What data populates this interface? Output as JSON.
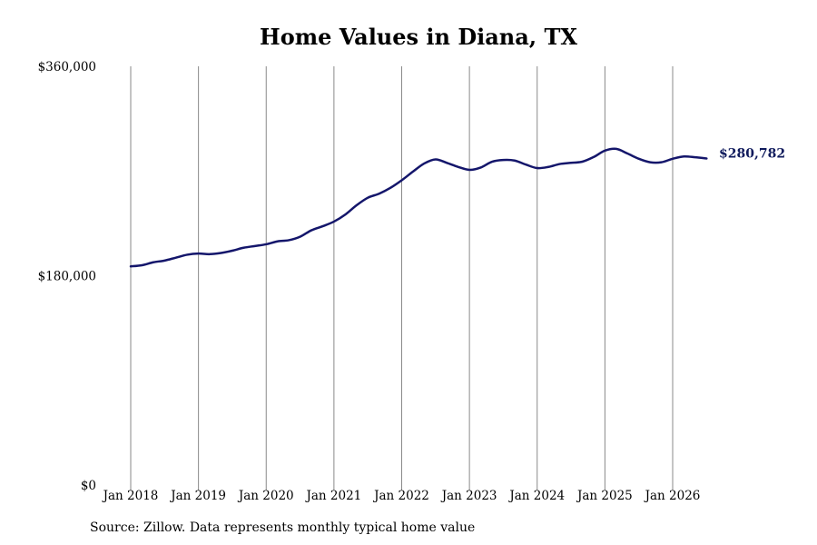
{
  "chart_data": {
    "type": "line",
    "title": "Home Values in Diana, TX",
    "source": "Source: Zillow. Data represents monthly typical home value",
    "ylim": [
      0,
      360000
    ],
    "yticks": [
      {
        "value": 0,
        "label": "$0"
      },
      {
        "value": 180000,
        "label": "$180,000"
      },
      {
        "value": 360000,
        "label": "$360,000"
      }
    ],
    "xlim": [
      "2018-01",
      "2026-07"
    ],
    "xticks": [
      {
        "date": "2018-01",
        "label": "Jan 2018"
      },
      {
        "date": "2019-01",
        "label": "Jan 2019"
      },
      {
        "date": "2020-01",
        "label": "Jan 2020"
      },
      {
        "date": "2021-01",
        "label": "Jan 2021"
      },
      {
        "date": "2022-01",
        "label": "Jan 2022"
      },
      {
        "date": "2023-01",
        "label": "Jan 2023"
      },
      {
        "date": "2024-01",
        "label": "Jan 2024"
      },
      {
        "date": "2025-01",
        "label": "Jan 2025"
      },
      {
        "date": "2026-01",
        "label": "Jan 2026"
      }
    ],
    "grid": "vertical",
    "line_color": "#14166b",
    "end_label": "$280,782",
    "series": [
      {
        "x": [
          "2018-01",
          "2018-03",
          "2018-05",
          "2018-07",
          "2018-09",
          "2018-11",
          "2019-01",
          "2019-03",
          "2019-05",
          "2019-07",
          "2019-09",
          "2019-11",
          "2020-01",
          "2020-03",
          "2020-05",
          "2020-07",
          "2020-09",
          "2020-11",
          "2021-01",
          "2021-03",
          "2021-05",
          "2021-07",
          "2021-09",
          "2021-11",
          "2022-01",
          "2022-03",
          "2022-05",
          "2022-07",
          "2022-09",
          "2022-11",
          "2023-01",
          "2023-03",
          "2023-05",
          "2023-07",
          "2023-09",
          "2023-11",
          "2024-01",
          "2024-03",
          "2024-05",
          "2024-07",
          "2024-09",
          "2024-11",
          "2025-01",
          "2025-03",
          "2025-05",
          "2025-07",
          "2025-09",
          "2025-11",
          "2026-01",
          "2026-03",
          "2026-05",
          "2026-07"
        ],
        "values": [
          188000,
          189000,
          191500,
          193000,
          195500,
          198000,
          199000,
          198500,
          199500,
          201500,
          204000,
          205500,
          207000,
          209500,
          210500,
          213500,
          219000,
          222500,
          226500,
          232500,
          240500,
          247000,
          250500,
          255500,
          262000,
          269500,
          276500,
          280000,
          277000,
          273500,
          271000,
          273000,
          278000,
          279500,
          279000,
          275500,
          272500,
          273500,
          276000,
          277000,
          278000,
          282000,
          287500,
          289000,
          285000,
          280500,
          277500,
          277500,
          280500,
          282500,
          281800,
          280782
        ]
      }
    ]
  }
}
